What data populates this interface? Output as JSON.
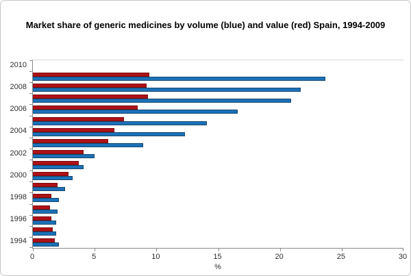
{
  "chart_data": {
    "type": "bar",
    "orientation": "horizontal",
    "title": "Market share of generic medicines by volume (blue) and value (red) Spain, 1994-2009",
    "xlabel": "%",
    "xlim": [
      0,
      30
    ],
    "xticks": [
      0,
      5,
      10,
      15,
      20,
      25,
      30
    ],
    "grid": false,
    "legend_position": "none",
    "categories_top_to_bottom": [
      "2010",
      "2009",
      "2008",
      "2007",
      "2006",
      "2005",
      "2004",
      "2003",
      "2002",
      "2001",
      "2000",
      "1999",
      "1998",
      "1997",
      "1996",
      "1995",
      "1994"
    ],
    "visible_ytick_labels": [
      "2010",
      "2008",
      "2006",
      "2004",
      "2002",
      "2000",
      "1998",
      "1996",
      "1994"
    ],
    "series": [
      {
        "name": "value (red)",
        "color": "#ae1117",
        "border_color": "#7e0d10",
        "values": [
          null,
          9.4,
          9.2,
          9.3,
          8.5,
          7.4,
          6.6,
          6.1,
          4.1,
          3.7,
          2.9,
          2.0,
          1.5,
          1.4,
          1.5,
          1.6,
          1.8
        ]
      },
      {
        "name": "volume (blue)",
        "color": "#1c71b8",
        "border_color": "#14486f",
        "values": [
          null,
          23.7,
          21.7,
          20.9,
          16.6,
          14.1,
          12.3,
          8.9,
          5.0,
          4.1,
          3.2,
          2.6,
          2.1,
          2.0,
          1.9,
          1.9,
          2.1
        ]
      }
    ]
  },
  "colors": {
    "axis_line": "#8a8a8a",
    "plot_top_border": "#d9d9d9",
    "tick_label": "#2e2e2e",
    "frame_border": "#c5c5c5",
    "background": "#ffffff"
  }
}
